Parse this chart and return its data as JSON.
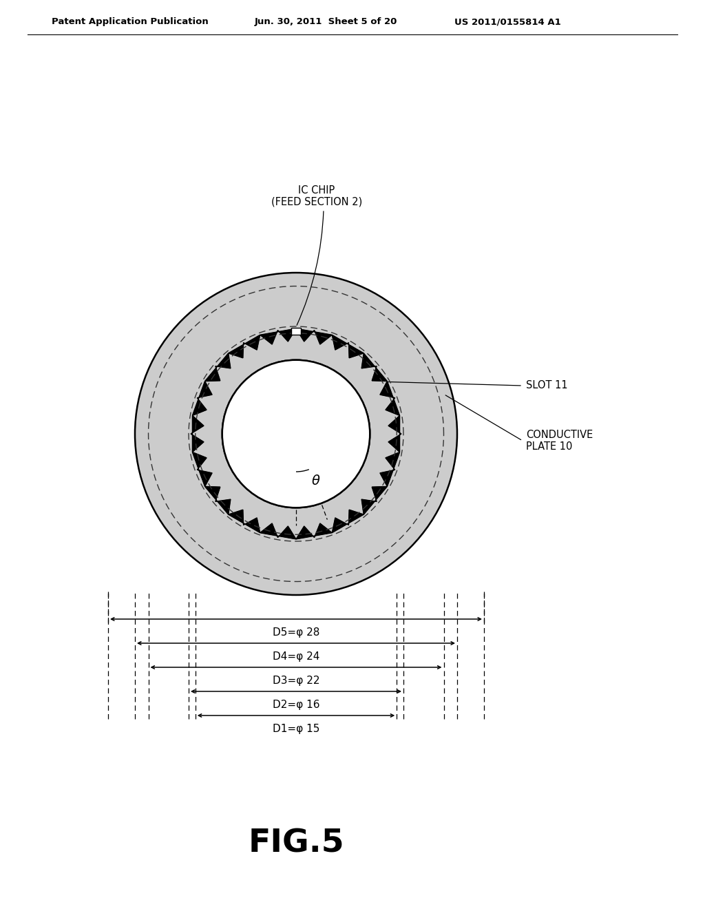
{
  "bg_color": "#ffffff",
  "header_left": "Patent Application Publication",
  "header_mid": "Jun. 30, 2011  Sheet 5 of 20",
  "header_right": "US 2011/0155814 A1",
  "figure_label": "FIG.5",
  "label_ic_chip": "IC CHIP\n(FEED SECTION 2)",
  "label_slot": "SLOT 11",
  "label_plate": "CONDUCTIVE\nPLATE 10",
  "label_theta": "θ",
  "dim_labels": [
    "D1=φ 15",
    "D2=φ 16",
    "D3=φ 22",
    "D4=φ 24",
    "D5=φ 28"
  ],
  "plate_gray": "#cccccc",
  "line_color": "#111111",
  "num_teeth": 18
}
